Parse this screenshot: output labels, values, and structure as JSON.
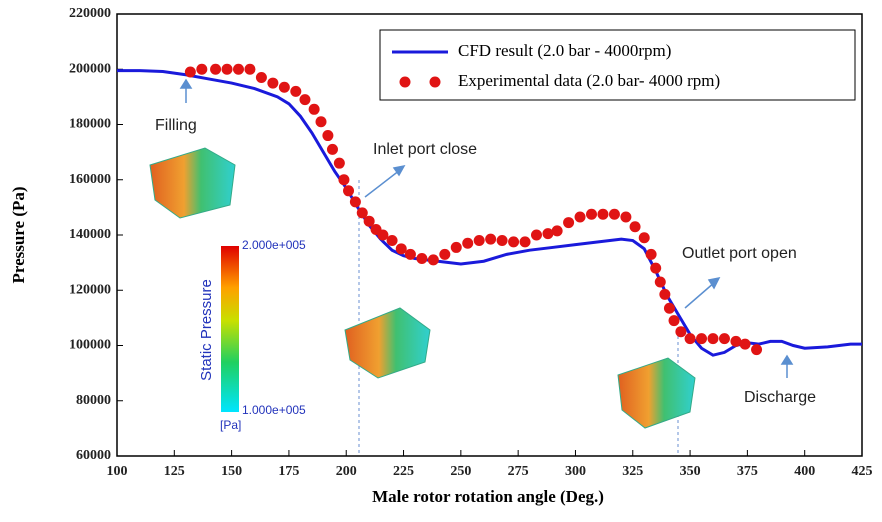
{
  "chart_data": {
    "type": "line",
    "x_label": "Male rotor rotation angle (Deg.)",
    "y_label": "Pressure (Pa)",
    "xlim": [
      100,
      425
    ],
    "xticks": [
      100,
      125,
      150,
      175,
      200,
      225,
      250,
      275,
      300,
      325,
      350,
      375,
      400,
      425
    ],
    "ylim": [
      60000,
      220000
    ],
    "yticks": [
      60000,
      80000,
      100000,
      120000,
      140000,
      160000,
      180000,
      200000,
      220000
    ],
    "series": [
      {
        "name": "CFD result (2.0 bar - 4000rpm)",
        "color": "#1a1adb",
        "style": "line",
        "x": [
          100,
          110,
          120,
          130,
          140,
          150,
          160,
          170,
          175,
          180,
          185,
          190,
          195,
          200,
          205,
          210,
          215,
          220,
          225,
          230,
          240,
          250,
          260,
          270,
          280,
          290,
          300,
          310,
          320,
          325,
          330,
          335,
          340,
          345,
          350,
          355,
          360,
          365,
          370,
          375,
          380,
          385,
          390,
          395,
          400,
          410,
          420,
          425
        ],
        "values": [
          199500,
          199500,
          199200,
          198000,
          196500,
          195000,
          193000,
          190000,
          187500,
          183000,
          177000,
          170000,
          163000,
          157000,
          150000,
          143500,
          138500,
          134500,
          132500,
          131500,
          130500,
          129500,
          130500,
          133000,
          134500,
          135500,
          136500,
          137500,
          138500,
          138000,
          135000,
          127000,
          118000,
          111000,
          104000,
          99000,
          96500,
          97500,
          100000,
          101000,
          100500,
          101500,
          101500,
          100000,
          99000,
          99500,
          100500,
          100500
        ]
      },
      {
        "name": "Experimental data (2.0 bar- 4000 rpm)",
        "color": "#e01414",
        "style": "points",
        "x": [
          132,
          137,
          143,
          148,
          153,
          158,
          163,
          168,
          173,
          178,
          182,
          186,
          189,
          192,
          194,
          197,
          199,
          201,
          204,
          207,
          210,
          213,
          216,
          220,
          224,
          228,
          233,
          238,
          243,
          248,
          253,
          258,
          263,
          268,
          273,
          278,
          283,
          288,
          292,
          297,
          302,
          307,
          312,
          317,
          322,
          326,
          330,
          333,
          335,
          337,
          339,
          341,
          343,
          346,
          350,
          355,
          360,
          365,
          370,
          374,
          379
        ],
        "values": [
          199000,
          200000,
          200000,
          200000,
          200000,
          200000,
          197000,
          195000,
          193500,
          192000,
          189000,
          185500,
          181000,
          176000,
          171000,
          166000,
          160000,
          156000,
          152000,
          148000,
          145000,
          142000,
          140000,
          138000,
          135000,
          133000,
          131500,
          131000,
          133000,
          135500,
          137000,
          138000,
          138500,
          138000,
          137500,
          137500,
          140000,
          140500,
          141500,
          144500,
          146500,
          147500,
          147500,
          147500,
          146500,
          143000,
          139000,
          133000,
          128000,
          123000,
          118500,
          113500,
          109000,
          105000,
          102500,
          102500,
          102500,
          102500,
          101500,
          100500,
          98500
        ]
      }
    ],
    "legend": "upper right",
    "annotations": [
      "Filling",
      "Inlet port close",
      "Outlet port open",
      "Discharge"
    ],
    "colorbar": {
      "title": "Static Pressure",
      "max_label": "2.000e+005",
      "min_label": "1.000e+005",
      "unit": "[Pa]"
    }
  }
}
